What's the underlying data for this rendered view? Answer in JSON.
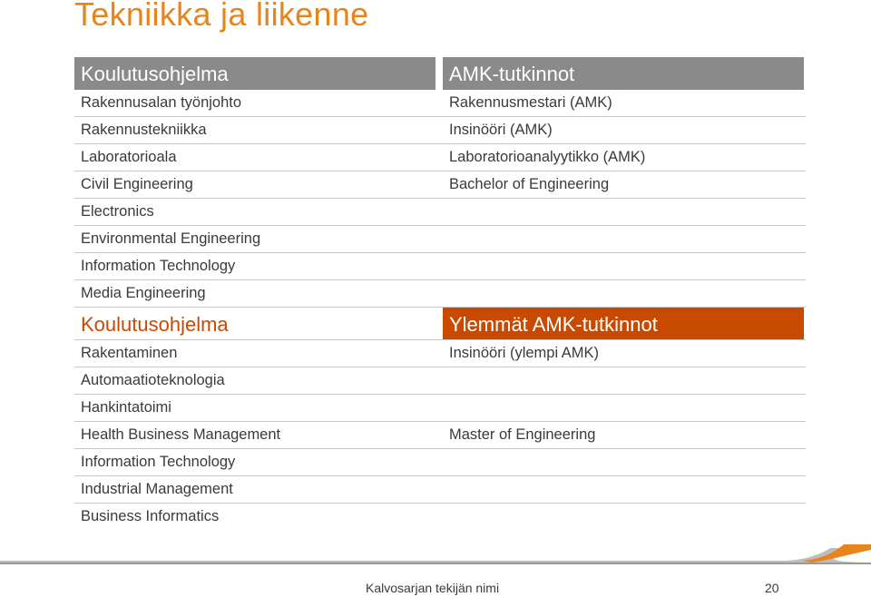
{
  "title": "Tekniikka ja liikenne",
  "section1": {
    "left_header": "Koulutusohjelma",
    "right_header": "AMK-tutkinnot",
    "rows": [
      {
        "left": "Rakennusalan työnjohto",
        "right": "Rakennusmestari (AMK)"
      },
      {
        "left": "Rakennustekniikka",
        "right": "Insinööri (AMK)"
      },
      {
        "left": "Laboratorioala",
        "right": "Laboratorioanalyytikko (AMK)"
      },
      {
        "left": "Civil Engineering",
        "right": "Bachelor of Engineering"
      },
      {
        "left": "Electronics",
        "right": ""
      },
      {
        "left": "Environmental Engineering",
        "right": ""
      },
      {
        "left": "Information Technology",
        "right": ""
      },
      {
        "left": "Media Engineering",
        "right": ""
      }
    ]
  },
  "section2": {
    "left_header": "Koulutusohjelma",
    "right_header": "Ylemmät AMK-tutkinnot",
    "rows": [
      {
        "left": "Rakentaminen",
        "right": "Insinööri (ylempi AMK)"
      },
      {
        "left": "Automaatioteknologia",
        "right": ""
      },
      {
        "left": "Hankintatoimi",
        "right": ""
      },
      {
        "left": "Health Business Management",
        "right": "Master of Engineering"
      },
      {
        "left": "Information Technology",
        "right": ""
      },
      {
        "left": "Industrial Management",
        "right": ""
      },
      {
        "left": "Business Informatics",
        "right": ""
      }
    ]
  },
  "footer": {
    "author": "Kalvosarjan tekijän nimi",
    "page": "20"
  },
  "colors": {
    "title": "#e8841c",
    "grey_header": "#8a8a8a",
    "orange_header": "#c84a00"
  }
}
